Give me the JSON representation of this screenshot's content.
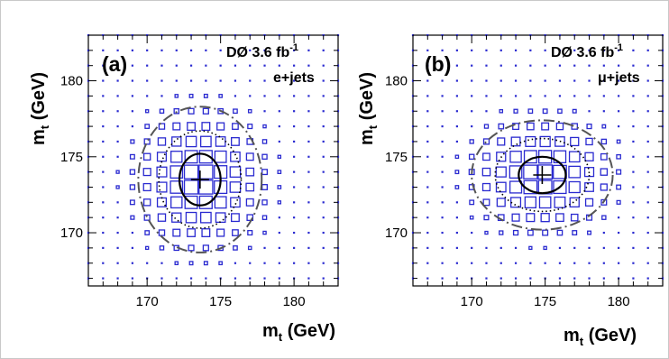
{
  "figure": {
    "page_border_color": "#c8c8c8",
    "mark_color": "#2a2ad0",
    "contour_color": "#000000",
    "contour_color_outer": "#555555"
  },
  "chart_data": [
    {
      "type": "scatter",
      "panel_label": "(a)",
      "experiment_label": "DØ 3.6 fb",
      "lumi_superscript": "-1",
      "channel_label": "e+jets",
      "xlabel_main": "m",
      "xlabel_sub": "t",
      "xlabel_unit": " (GeV)",
      "ylabel_main": "m",
      "ylabel_sub": "t",
      "ylabel_unit": " (GeV)",
      "xlim": [
        166,
        183
      ],
      "ylim": [
        166.5,
        183
      ],
      "xticks": [
        170,
        175,
        180
      ],
      "yticks": [
        170,
        175,
        180
      ],
      "grid_step": 1,
      "best_fit": {
        "x": 173.6,
        "y": 173.5
      },
      "likelihood_peak": {
        "x": 173.6,
        "y": 173.5,
        "sigma_x": 2.2,
        "sigma_y": 2.3
      },
      "contours": [
        {
          "name": "1 sigma",
          "style": "solid",
          "rx": 1.4,
          "ry": 1.7
        },
        {
          "name": "2 sigma",
          "style": "dotted",
          "rx": 2.8,
          "ry": 3.2
        },
        {
          "name": "3 sigma",
          "style": "dashdot",
          "rx": 4.2,
          "ry": 4.8
        }
      ]
    },
    {
      "type": "scatter",
      "panel_label": "(b)",
      "experiment_label": "DØ 3.6 fb",
      "lumi_superscript": "-1",
      "channel_label": "μ+jets",
      "xlabel_main": "m",
      "xlabel_sub": "t",
      "xlabel_unit": " (GeV)",
      "ylabel_main": "m",
      "ylabel_sub": "t",
      "ylabel_unit": " (GeV)",
      "xlim": [
        166,
        183
      ],
      "ylim": [
        166.5,
        183
      ],
      "xticks": [
        170,
        175,
        180
      ],
      "yticks": [
        170,
        175,
        180
      ],
      "grid_step": 1,
      "best_fit": {
        "x": 174.8,
        "y": 173.8
      },
      "likelihood_peak": {
        "x": 174.8,
        "y": 173.8,
        "sigma_x": 2.4,
        "sigma_y": 1.9
      },
      "contours": [
        {
          "name": "1 sigma",
          "style": "solid",
          "rx": 1.6,
          "ry": 1.2
        },
        {
          "name": "2 sigma",
          "style": "dotted",
          "rx": 3.2,
          "ry": 2.4
        },
        {
          "name": "3 sigma",
          "style": "dashdot",
          "rx": 4.8,
          "ry": 3.6
        }
      ]
    }
  ]
}
